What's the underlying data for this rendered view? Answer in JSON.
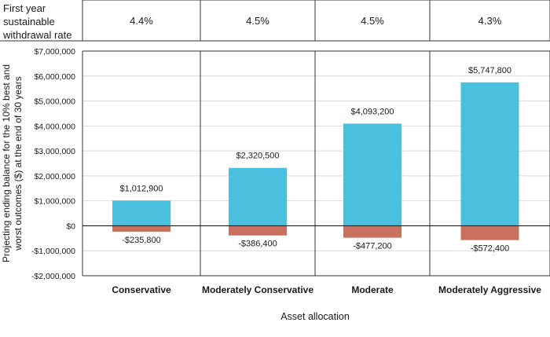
{
  "chart_data": {
    "type": "bar",
    "header_label": "First year sustainable withdrawal rate",
    "header_label_lines": [
      "First year",
      "sustainable",
      "withdrawal rate"
    ],
    "withdrawal_rates": [
      "4.4%",
      "4.5%",
      "4.5%",
      "4.3%"
    ],
    "categories": [
      "Conservative",
      "Moderately Conservative",
      "Moderate",
      "Moderately Aggressive"
    ],
    "series": [
      {
        "values": [
          1012900,
          2320500,
          4093200,
          5747800
        ],
        "color": "#4ac0de"
      },
      {
        "values": [
          -235800,
          -386400,
          -477200,
          -572400
        ],
        "color": "#c9705f"
      }
    ],
    "data_labels": {
      "best": [
        "$1,012,900",
        "$2,320,500",
        "$4,093,200",
        "$5,747,800"
      ],
      "worst": [
        "-$235,800",
        "-$386,400",
        "-$477,200",
        "-$572,400"
      ]
    },
    "ylabel": "Projecting ending balance for the 10% best and worst outcomes ($) at the end of 30 years",
    "ylabel_lines": [
      "Projecting ending balance for the 10% best and",
      "worst outcomes ($) at the end of 30 years"
    ],
    "xlabel": "Asset allocation",
    "ylim": [
      -2000000,
      7000000
    ],
    "ytick_values": [
      -2000000,
      -1000000,
      0,
      1000000,
      2000000,
      3000000,
      4000000,
      5000000,
      6000000,
      7000000
    ],
    "ytick_labels": [
      "-$2,000,000",
      "-$1,000,000",
      "$0",
      "$1,000,000",
      "$2,000,000",
      "$3,000,000",
      "$4,000,000",
      "$5,000,000",
      "$6,000,000",
      "$7,000,000"
    ],
    "grid": true
  }
}
